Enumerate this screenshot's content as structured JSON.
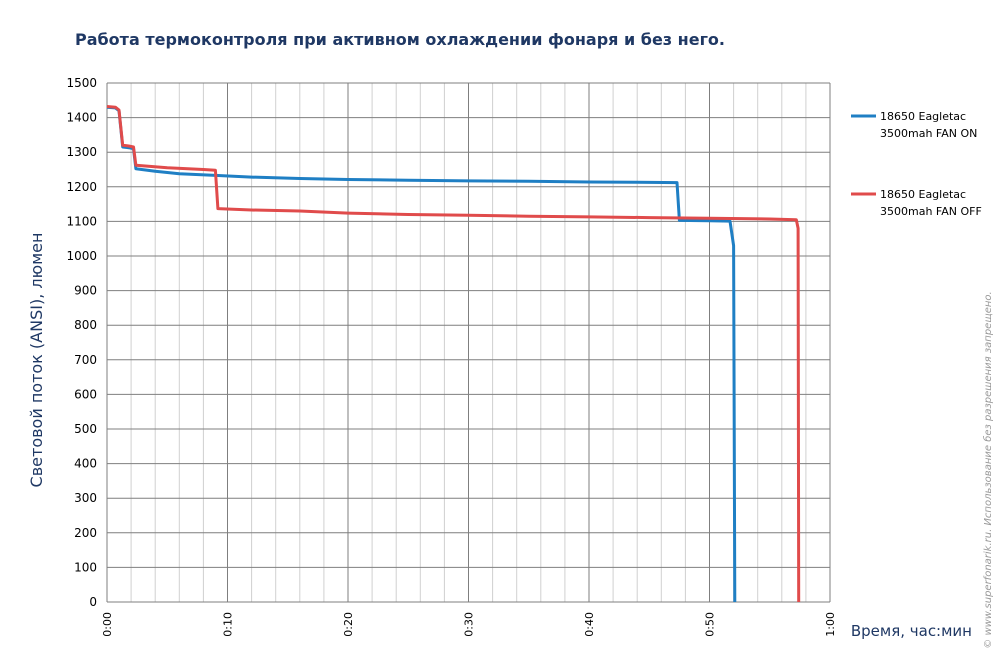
{
  "chart_data": {
    "type": "line",
    "title": "Работа термоконтроля при активном охлаждении фонаря и без него.",
    "xlabel": "Время, час:мин",
    "ylabel": "Световой поток (ANSI), люмен",
    "xlim": [
      0,
      60
    ],
    "ylim": [
      0,
      1500
    ],
    "x_ticks": [
      "0:00",
      "0:10",
      "0:20",
      "0:30",
      "0:40",
      "0:50",
      "1:00"
    ],
    "y_ticks": [
      "0",
      "100",
      "200",
      "300",
      "400",
      "500",
      "600",
      "700",
      "800",
      "900",
      "1000",
      "1100",
      "1200",
      "1300",
      "1400",
      "1500"
    ],
    "grid": true,
    "legend_position": "right",
    "series": [
      {
        "name_line1": "18650 Eagletac",
        "name_line2": "3500mah FAN ON",
        "color": "#1f7fc4",
        "points": [
          [
            0,
            1430
          ],
          [
            0.7,
            1428
          ],
          [
            1.0,
            1420
          ],
          [
            1.3,
            1315
          ],
          [
            1.8,
            1313
          ],
          [
            2.2,
            1310
          ],
          [
            2.4,
            1252
          ],
          [
            4,
            1245
          ],
          [
            6,
            1238
          ],
          [
            9,
            1233
          ],
          [
            12,
            1228
          ],
          [
            16,
            1224
          ],
          [
            20,
            1221
          ],
          [
            25,
            1219
          ],
          [
            30,
            1217
          ],
          [
            35,
            1216
          ],
          [
            40,
            1214
          ],
          [
            44,
            1213
          ],
          [
            47.3,
            1212
          ],
          [
            47.5,
            1103
          ],
          [
            50,
            1102
          ],
          [
            51.7,
            1101
          ],
          [
            52.0,
            1030
          ],
          [
            52.1,
            0
          ]
        ]
      },
      {
        "name_line1": "18650 Eagletac",
        "name_line2": "3500mah FAN OFF",
        "color": "#e04b4b",
        "points": [
          [
            0,
            1432
          ],
          [
            0.7,
            1430
          ],
          [
            1.0,
            1422
          ],
          [
            1.3,
            1320
          ],
          [
            1.8,
            1318
          ],
          [
            2.2,
            1315
          ],
          [
            2.4,
            1262
          ],
          [
            5,
            1255
          ],
          [
            8,
            1250
          ],
          [
            9.0,
            1248
          ],
          [
            9.2,
            1137
          ],
          [
            12,
            1133
          ],
          [
            16,
            1130
          ],
          [
            20,
            1124
          ],
          [
            25,
            1120
          ],
          [
            30,
            1118
          ],
          [
            35,
            1115
          ],
          [
            40,
            1113
          ],
          [
            45,
            1111
          ],
          [
            50,
            1109
          ],
          [
            55,
            1107
          ],
          [
            57.2,
            1105
          ],
          [
            57.35,
            1080
          ],
          [
            57.4,
            0
          ]
        ]
      }
    ]
  },
  "watermark": "© www.superfonarik.ru. Использование без разрешения запрещено."
}
